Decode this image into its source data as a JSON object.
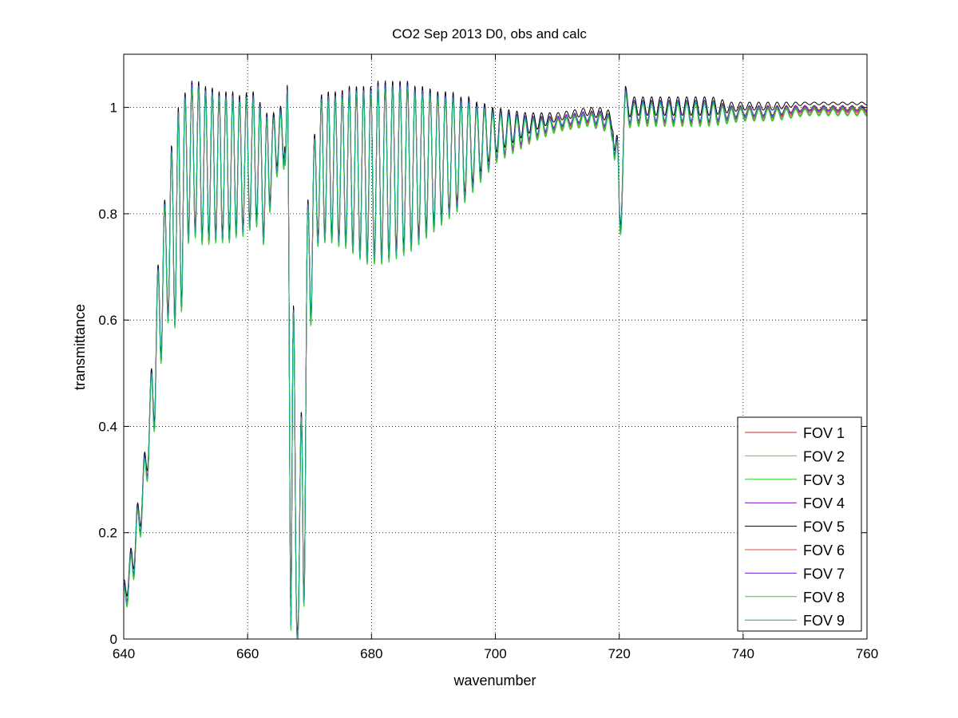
{
  "chart_data": {
    "type": "line",
    "title": "CO2 Sep 2013 D0, obs and calc",
    "xlabel": "wavenumber",
    "ylabel": "transmittance",
    "xlim": [
      640,
      760
    ],
    "ylim": [
      0,
      1.1
    ],
    "xticks": [
      "640",
      "660",
      "680",
      "700",
      "720",
      "740",
      "760"
    ],
    "yticks": [
      "0",
      "0.2",
      "0.4",
      "0.6",
      "0.8",
      "1"
    ],
    "grid": true,
    "legend_position": "bottom-right",
    "envelope_upper": [
      [
        640,
        0.1
      ],
      [
        641,
        0.15
      ],
      [
        642,
        0.23
      ],
      [
        643,
        0.3
      ],
      [
        644,
        0.42
      ],
      [
        645,
        0.6
      ],
      [
        646,
        0.78
      ],
      [
        647,
        0.84
      ],
      [
        648,
        0.95
      ],
      [
        649,
        1.0
      ],
      [
        650,
        1.02
      ],
      [
        651,
        1.04
      ],
      [
        652,
        1.04
      ],
      [
        653,
        1.03
      ],
      [
        654,
        1.03
      ],
      [
        655,
        1.02
      ],
      [
        656,
        1.02
      ],
      [
        657,
        1.02
      ],
      [
        658,
        1.02
      ],
      [
        659,
        1.01
      ],
      [
        660,
        1.02
      ],
      [
        661,
        1.02
      ],
      [
        662,
        1.0
      ],
      [
        663,
        0.98
      ],
      [
        664,
        0.98
      ],
      [
        665,
        0.98
      ],
      [
        666,
        1.02
      ],
      [
        667,
        1.05
      ],
      [
        668,
        0.1
      ],
      [
        669,
        0.6
      ],
      [
        670,
        0.9
      ],
      [
        671,
        0.95
      ],
      [
        672,
        1.02
      ],
      [
        673,
        1.02
      ],
      [
        674,
        1.02
      ],
      [
        675,
        1.02
      ],
      [
        676,
        1.03
      ],
      [
        677,
        1.03
      ],
      [
        678,
        1.03
      ],
      [
        679,
        1.03
      ],
      [
        680,
        1.03
      ],
      [
        681,
        1.04
      ],
      [
        682,
        1.04
      ],
      [
        683,
        1.04
      ],
      [
        684,
        1.04
      ],
      [
        685,
        1.04
      ],
      [
        686,
        1.04
      ],
      [
        687,
        1.03
      ],
      [
        688,
        1.03
      ],
      [
        689,
        1.03
      ],
      [
        690,
        1.02
      ],
      [
        691,
        1.02
      ],
      [
        692,
        1.02
      ],
      [
        693,
        1.02
      ],
      [
        694,
        1.01
      ],
      [
        695,
        1.01
      ],
      [
        696,
        1.01
      ],
      [
        697,
        1.0
      ],
      [
        698,
        1.0
      ],
      [
        699,
        0.99
      ],
      [
        700,
        0.99
      ],
      [
        705,
        0.98
      ],
      [
        710,
        0.98
      ],
      [
        715,
        0.99
      ],
      [
        718,
        0.99
      ],
      [
        719,
        0.97
      ],
      [
        720,
        0.92
      ],
      [
        721,
        1.03
      ],
      [
        722,
        1.01
      ],
      [
        725,
        1.01
      ],
      [
        730,
        1.01
      ],
      [
        735,
        1.01
      ],
      [
        738,
        1.0
      ],
      [
        740,
        1.0
      ],
      [
        745,
        1.0
      ],
      [
        750,
        1.0
      ],
      [
        755,
        1.0
      ],
      [
        760,
        1.0
      ]
    ],
    "envelope_lower": [
      [
        640,
        0.05
      ],
      [
        641,
        0.08
      ],
      [
        642,
        0.14
      ],
      [
        643,
        0.22
      ],
      [
        644,
        0.32
      ],
      [
        645,
        0.4
      ],
      [
        646,
        0.52
      ],
      [
        647,
        0.6
      ],
      [
        648,
        0.6
      ],
      [
        649,
        0.56
      ],
      [
        650,
        0.74
      ],
      [
        651,
        0.76
      ],
      [
        652,
        0.76
      ],
      [
        653,
        0.74
      ],
      [
        654,
        0.75
      ],
      [
        655,
        0.75
      ],
      [
        656,
        0.75
      ],
      [
        657,
        0.75
      ],
      [
        658,
        0.76
      ],
      [
        659,
        0.76
      ],
      [
        660,
        0.77
      ],
      [
        661,
        0.78
      ],
      [
        662,
        0.78
      ],
      [
        663,
        0.72
      ],
      [
        664,
        0.86
      ],
      [
        665,
        0.88
      ],
      [
        666,
        0.89
      ],
      [
        667,
        0.0
      ],
      [
        668,
        0.0
      ],
      [
        669,
        0.0
      ],
      [
        670,
        0.55
      ],
      [
        671,
        0.74
      ],
      [
        672,
        0.75
      ],
      [
        673,
        0.75
      ],
      [
        674,
        0.75
      ],
      [
        675,
        0.74
      ],
      [
        676,
        0.74
      ],
      [
        677,
        0.73
      ],
      [
        678,
        0.72
      ],
      [
        679,
        0.71
      ],
      [
        680,
        0.71
      ],
      [
        682,
        0.71
      ],
      [
        684,
        0.72
      ],
      [
        686,
        0.73
      ],
      [
        688,
        0.75
      ],
      [
        690,
        0.77
      ],
      [
        692,
        0.79
      ],
      [
        694,
        0.81
      ],
      [
        696,
        0.84
      ],
      [
        698,
        0.87
      ],
      [
        700,
        0.9
      ],
      [
        703,
        0.92
      ],
      [
        706,
        0.94
      ],
      [
        710,
        0.96
      ],
      [
        715,
        0.97
      ],
      [
        718,
        0.96
      ],
      [
        719,
        0.94
      ],
      [
        720,
        0.69
      ],
      [
        721,
        0.96
      ],
      [
        722,
        0.97
      ],
      [
        725,
        0.97
      ],
      [
        730,
        0.97
      ],
      [
        735,
        0.97
      ],
      [
        740,
        0.98
      ],
      [
        745,
        0.98
      ],
      [
        750,
        0.99
      ],
      [
        755,
        0.99
      ],
      [
        760,
        0.99
      ]
    ],
    "line_spacing": [
      [
        640,
        1.1
      ],
      [
        670,
        1.1
      ],
      [
        700,
        1.3
      ],
      [
        760,
        1.55
      ]
    ],
    "series": [
      {
        "name": "FOV 1",
        "color": "#d62728",
        "offset": 0.0
      },
      {
        "name": "FOV 2",
        "color": "#c8a000",
        "offset": 0.004
      },
      {
        "name": "FOV 3",
        "color": "#22d322",
        "offset": -0.004
      },
      {
        "name": "FOV 4",
        "color": "#8b00d6",
        "offset": 0.002
      },
      {
        "name": "FOV 5",
        "color": "#000000",
        "offset": 0.01
      },
      {
        "name": "FOV 6",
        "color": "#e8483c",
        "offset": -0.002
      },
      {
        "name": "FOV 7",
        "color": "#6a22e0",
        "offset": 0.003
      },
      {
        "name": "FOV 8",
        "color": "#33cc33",
        "offset": -0.003
      },
      {
        "name": "FOV 9",
        "color": "#11a6a6",
        "offset": 0.001
      }
    ]
  }
}
